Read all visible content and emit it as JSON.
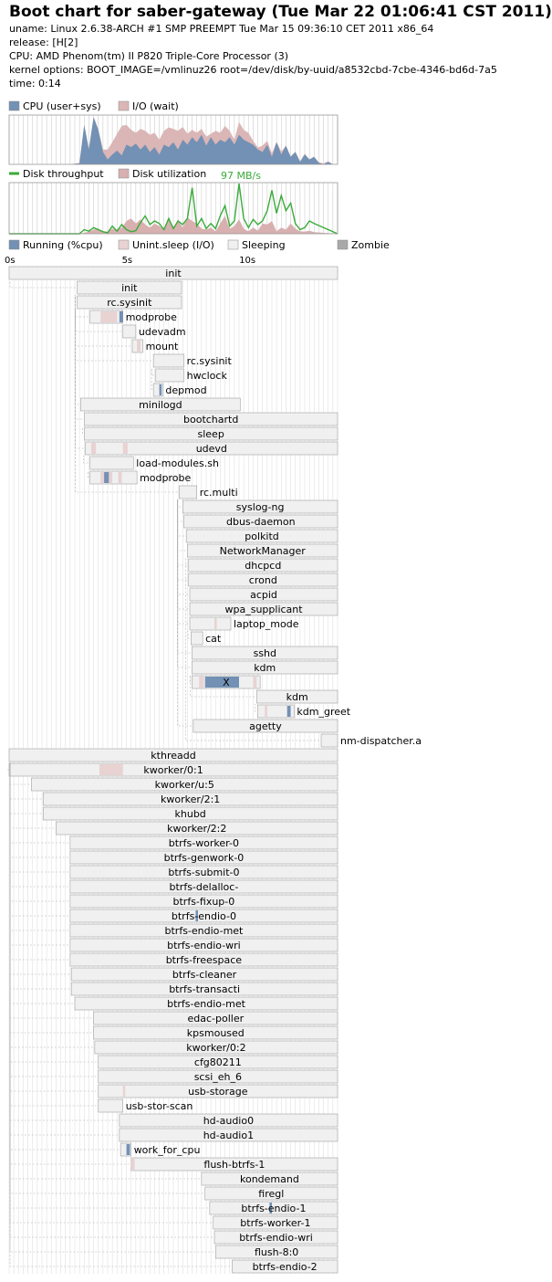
{
  "header": {
    "title": "Boot chart for saber-gateway (Tue Mar 22 01:06:41 CST 2011)",
    "uname": "uname: Linux 2.6.38-ARCH #1 SMP PREEMPT Tue Mar 15 09:36:10 CET 2011 x86_64",
    "release": "release: [H[2]",
    "cpu": "CPU: AMD Phenom(tm) II P820 Triple-Core Processor (3)",
    "kernel_options": "kernel options: BOOT_IMAGE=/vmlinuz26 root=/dev/disk/by-uuid/a8532cbd-7cbe-4346-bd6d-7a5",
    "time": "time: 0:14"
  },
  "colors": {
    "cpu": "#7291b4",
    "io": "#dbb6b6",
    "disk_throughput": "#3aab3a",
    "disk_util": "#d8b0b0",
    "running": "#7291b4",
    "uninterruptible": "#e8d2d2",
    "sleeping": "#f0f0f0",
    "zombie": "#a9a9a9",
    "grid": "#cccccc"
  },
  "chart_data": [
    {
      "type": "area",
      "legend": [
        "CPU (user+sys)",
        "I/O (wait)"
      ],
      "xlim": [
        0,
        14
      ],
      "ylim": [
        0,
        100
      ],
      "x": [
        0,
        2,
        2.6,
        3.0,
        3.2,
        3.4,
        3.6,
        3.8,
        4.0,
        4.2,
        4.4,
        4.6,
        4.8,
        5.0,
        5.2,
        5.4,
        5.6,
        5.8,
        6.0,
        6.2,
        6.4,
        6.6,
        6.8,
        7.0,
        7.2,
        7.4,
        7.6,
        7.8,
        8.0,
        8.2,
        8.4,
        8.6,
        8.8,
        9.0,
        9.2,
        9.4,
        9.6,
        9.8,
        10.0,
        10.2,
        10.4,
        10.6,
        10.8,
        11.0,
        11.2,
        11.4,
        11.6,
        11.8,
        12.0,
        12.2,
        12.4,
        12.6,
        12.8,
        13.0,
        13.2,
        13.4,
        13.6,
        13.8,
        14.0
      ],
      "series": [
        {
          "name": "CPU (user+sys)",
          "values": [
            0,
            0,
            0,
            2,
            80,
            30,
            96,
            70,
            25,
            10,
            20,
            28,
            18,
            40,
            35,
            42,
            30,
            40,
            25,
            35,
            20,
            40,
            35,
            45,
            30,
            50,
            40,
            55,
            45,
            60,
            38,
            55,
            40,
            50,
            45,
            55,
            40,
            60,
            50,
            45,
            40,
            30,
            25,
            40,
            15,
            45,
            20,
            38,
            15,
            25,
            5,
            20,
            10,
            15,
            3,
            0,
            5,
            0,
            0
          ]
        },
        {
          "name": "I/O (wait)",
          "values": [
            0,
            0,
            0,
            3,
            80,
            32,
            96,
            72,
            30,
            30,
            45,
            62,
            78,
            80,
            70,
            64,
            72,
            68,
            60,
            64,
            50,
            68,
            75,
            72,
            68,
            76,
            62,
            70,
            64,
            72,
            56,
            62,
            68,
            64,
            78,
            68,
            50,
            86,
            70,
            64,
            48,
            34,
            38,
            48,
            22,
            46,
            26,
            38,
            16,
            26,
            6,
            22,
            10,
            16,
            4,
            2,
            6,
            0,
            0
          ]
        }
      ]
    },
    {
      "type": "line",
      "legend": [
        "Disk throughput",
        "Disk utilization"
      ],
      "max_label": "97 MB/s",
      "xlim": [
        0,
        14
      ],
      "x": [
        0,
        3.0,
        3.2,
        3.4,
        3.6,
        3.8,
        4.0,
        4.2,
        4.4,
        4.6,
        4.8,
        5.0,
        5.2,
        5.4,
        5.6,
        5.8,
        6.0,
        6.2,
        6.4,
        6.6,
        6.8,
        7.0,
        7.2,
        7.4,
        7.6,
        7.8,
        8.0,
        8.2,
        8.4,
        8.6,
        8.8,
        9.0,
        9.2,
        9.4,
        9.6,
        9.8,
        10.0,
        10.2,
        10.4,
        10.6,
        10.8,
        11.0,
        11.2,
        11.4,
        11.6,
        11.8,
        12.0,
        12.2,
        12.4,
        12.6,
        12.8,
        13.0,
        14.0
      ],
      "series": [
        {
          "name": "Disk throughput",
          "values": [
            0,
            0,
            8,
            5,
            12,
            8,
            4,
            2,
            15,
            5,
            18,
            8,
            4,
            6,
            22,
            35,
            18,
            25,
            20,
            8,
            30,
            10,
            25,
            18,
            30,
            90,
            15,
            30,
            10,
            20,
            10,
            35,
            55,
            15,
            25,
            98,
            30,
            12,
            28,
            18,
            25,
            45,
            85,
            40,
            75,
            45,
            60,
            20,
            8,
            12,
            25,
            20,
            0
          ]
        },
        {
          "name": "Disk utilization",
          "values": [
            0,
            0,
            2,
            4,
            8,
            10,
            5,
            4,
            10,
            8,
            12,
            25,
            30,
            20,
            28,
            18,
            12,
            20,
            15,
            10,
            30,
            8,
            28,
            12,
            32,
            25,
            20,
            10,
            8,
            12,
            5,
            20,
            35,
            10,
            15,
            28,
            10,
            5,
            12,
            6,
            20,
            18,
            25,
            5,
            12,
            8,
            20,
            10,
            5,
            4,
            6,
            3,
            0
          ]
        }
      ]
    },
    {
      "type": "gantt",
      "legend": [
        "Running (%cpu)",
        "Unint.sleep (I/O)",
        "Sleeping",
        "Zombie"
      ],
      "xlim": [
        0,
        14
      ],
      "ticks": [
        "0s",
        "5s",
        "10s"
      ],
      "tick_values": [
        0,
        5,
        10
      ],
      "processes": [
        {
          "name": "init",
          "start": 0,
          "end": 14,
          "parent": null
        },
        {
          "name": "init",
          "start": 2.9,
          "end": 7.35,
          "parent": 0
        },
        {
          "name": "rc.sysinit",
          "start": 2.9,
          "end": 7.35,
          "parent": 1
        },
        {
          "name": "modprobe",
          "start": 3.45,
          "end": 4.85,
          "parent": 2,
          "io": [
            [
              3.9,
              4.6
            ]
          ],
          "cpu": [
            [
              4.7,
              4.85
            ]
          ]
        },
        {
          "name": "udevadm",
          "start": 4.85,
          "end": 5.4,
          "parent": 2
        },
        {
          "name": "mount",
          "start": 5.25,
          "end": 5.7,
          "parent": 2,
          "io": [
            [
              5.45,
              5.6
            ]
          ]
        },
        {
          "name": "rc.sysinit",
          "start": 6.15,
          "end": 7.45,
          "parent": 2
        },
        {
          "name": "hwclock",
          "start": 6.25,
          "end": 7.45,
          "parent": 6
        },
        {
          "name": "depmod",
          "start": 6.15,
          "end": 6.55,
          "parent": 6,
          "cpu": [
            [
              6.4,
              6.5
            ]
          ]
        },
        {
          "name": "minilogd",
          "start": 3.05,
          "end": 9.85,
          "parent": 2
        },
        {
          "name": "bootchartd",
          "start": 3.2,
          "end": 14,
          "parent": 1
        },
        {
          "name": "sleep",
          "start": 3.2,
          "end": 14,
          "parent": 10
        },
        {
          "name": "udevd",
          "start": 3.25,
          "end": 14,
          "parent": 1,
          "io": [
            [
              3.5,
              3.7
            ],
            [
              4.85,
              5.05
            ]
          ]
        },
        {
          "name": "load-modules.sh",
          "start": 3.45,
          "end": 5.3,
          "parent": 12
        },
        {
          "name": "modprobe",
          "start": 3.45,
          "end": 5.45,
          "parent": 13,
          "io": [
            [
              3.9,
              4.4
            ],
            [
              4.65,
              4.8
            ]
          ],
          "cpu": [
            [
              4.05,
              4.25
            ]
          ]
        },
        {
          "name": "rc.multi",
          "start": 7.25,
          "end": 8.0,
          "parent": 1
        },
        {
          "name": "syslog-ng",
          "start": 7.4,
          "end": 14,
          "parent": 15
        },
        {
          "name": "dbus-daemon",
          "start": 7.45,
          "end": 14,
          "parent": 15
        },
        {
          "name": "polkitd",
          "start": 7.55,
          "end": 14,
          "parent": 15
        },
        {
          "name": "NetworkManager",
          "start": 7.6,
          "end": 14,
          "parent": 15
        },
        {
          "name": "dhcpcd",
          "start": 7.65,
          "end": 14,
          "parent": 15
        },
        {
          "name": "crond",
          "start": 7.65,
          "end": 14,
          "parent": 15
        },
        {
          "name": "acpid",
          "start": 7.7,
          "end": 14,
          "parent": 15
        },
        {
          "name": "wpa_supplicant",
          "start": 7.7,
          "end": 14,
          "parent": 15
        },
        {
          "name": "laptop_mode",
          "start": 7.7,
          "end": 9.45,
          "parent": 15,
          "io": [
            [
              8.75,
              8.85
            ]
          ]
        },
        {
          "name": "cat",
          "start": 7.75,
          "end": 8.25,
          "parent": 24
        },
        {
          "name": "sshd",
          "start": 7.8,
          "end": 14,
          "parent": 15
        },
        {
          "name": "kdm",
          "start": 7.8,
          "end": 14,
          "parent": 15
        },
        {
          "name": "X",
          "start": 7.8,
          "end": 10.7,
          "parent": 27,
          "cpu": [
            [
              8.35,
              9.8
            ]
          ],
          "io": [
            [
              8.1,
              8.3
            ],
            [
              10.4,
              10.55
            ]
          ]
        },
        {
          "name": "kdm",
          "start": 10.55,
          "end": 14,
          "parent": 27
        },
        {
          "name": "kdm_greet",
          "start": 10.6,
          "end": 12.15,
          "parent": 29,
          "io": [
            [
              10.9,
              11.0
            ]
          ],
          "cpu": [
            [
              11.85,
              12.0
            ]
          ]
        },
        {
          "name": "agetty",
          "start": 7.85,
          "end": 14,
          "parent": 15
        },
        {
          "name": "nm-dispatcher.a",
          "start": 13.3,
          "end": 14,
          "parent": 19
        },
        {
          "name": "kthreadd",
          "start": 0,
          "end": 14,
          "parent": null
        },
        {
          "name": "kworker/0:1",
          "start": 0,
          "end": 14,
          "parent": 33,
          "io": [
            [
              3.85,
              4.85
            ]
          ]
        },
        {
          "name": "kworker/u:5",
          "start": 0.95,
          "end": 14,
          "parent": 33
        },
        {
          "name": "kworker/2:1",
          "start": 1.45,
          "end": 14,
          "parent": 33
        },
        {
          "name": "khubd",
          "start": 1.45,
          "end": 14,
          "parent": 33
        },
        {
          "name": "kworker/2:2",
          "start": 2.0,
          "end": 14,
          "parent": 33
        },
        {
          "name": "btrfs-worker-0",
          "start": 2.6,
          "end": 14,
          "parent": 33
        },
        {
          "name": "btrfs-genwork-0",
          "start": 2.6,
          "end": 14,
          "parent": 33
        },
        {
          "name": "btrfs-submit-0",
          "start": 2.6,
          "end": 14,
          "parent": 33
        },
        {
          "name": "btrfs-delalloc-",
          "start": 2.6,
          "end": 14,
          "parent": 33
        },
        {
          "name": "btrfs-fixup-0",
          "start": 2.6,
          "end": 14,
          "parent": 33
        },
        {
          "name": "btrfs-endio-0",
          "start": 2.6,
          "end": 14,
          "parent": 33,
          "cpu": [
            [
              7.95,
              8.05
            ]
          ]
        },
        {
          "name": "btrfs-endio-met",
          "start": 2.6,
          "end": 14,
          "parent": 33
        },
        {
          "name": "btrfs-endio-wri",
          "start": 2.6,
          "end": 14,
          "parent": 33
        },
        {
          "name": "btrfs-freespace",
          "start": 2.6,
          "end": 14,
          "parent": 33
        },
        {
          "name": "btrfs-cleaner",
          "start": 2.65,
          "end": 14,
          "parent": 33
        },
        {
          "name": "btrfs-transacti",
          "start": 2.65,
          "end": 14,
          "parent": 33
        },
        {
          "name": "btrfs-endio-met",
          "start": 2.8,
          "end": 14,
          "parent": 33
        },
        {
          "name": "edac-poller",
          "start": 3.6,
          "end": 14,
          "parent": 33
        },
        {
          "name": "kpsmoused",
          "start": 3.6,
          "end": 14,
          "parent": 33
        },
        {
          "name": "kworker/0:2",
          "start": 3.65,
          "end": 14,
          "parent": 33
        },
        {
          "name": "cfg80211",
          "start": 3.8,
          "end": 14,
          "parent": 33
        },
        {
          "name": "scsi_eh_6",
          "start": 3.8,
          "end": 14,
          "parent": 33
        },
        {
          "name": "usb-storage",
          "start": 3.8,
          "end": 14,
          "parent": 33,
          "io": [
            [
              4.85,
              4.95
            ]
          ]
        },
        {
          "name": "usb-stor-scan",
          "start": 3.8,
          "end": 4.85,
          "parent": 33
        },
        {
          "name": "hd-audio0",
          "start": 4.7,
          "end": 14,
          "parent": 33
        },
        {
          "name": "hd-audio1",
          "start": 4.7,
          "end": 14,
          "parent": 33
        },
        {
          "name": "work_for_cpu",
          "start": 4.75,
          "end": 5.2,
          "parent": 33,
          "cpu": [
            [
              5.0,
              5.15
            ]
          ]
        },
        {
          "name": "flush-btrfs-1",
          "start": 5.2,
          "end": 14,
          "parent": 33,
          "io": [
            [
              5.2,
              5.35
            ]
          ]
        },
        {
          "name": "kondemand",
          "start": 8.2,
          "end": 14,
          "parent": 33
        },
        {
          "name": "firegl",
          "start": 8.35,
          "end": 14,
          "parent": 33
        },
        {
          "name": "btrfs-endio-1",
          "start": 8.55,
          "end": 14,
          "parent": 33,
          "cpu": [
            [
              11.1,
              11.2
            ]
          ]
        },
        {
          "name": "btrfs-worker-1",
          "start": 8.7,
          "end": 14,
          "parent": 33
        },
        {
          "name": "btrfs-endio-wri",
          "start": 8.75,
          "end": 14,
          "parent": 33
        },
        {
          "name": "flush-8:0",
          "start": 8.8,
          "end": 14,
          "parent": 33
        },
        {
          "name": "btrfs-endio-2",
          "start": 9.5,
          "end": 14,
          "parent": 33
        }
      ]
    }
  ]
}
